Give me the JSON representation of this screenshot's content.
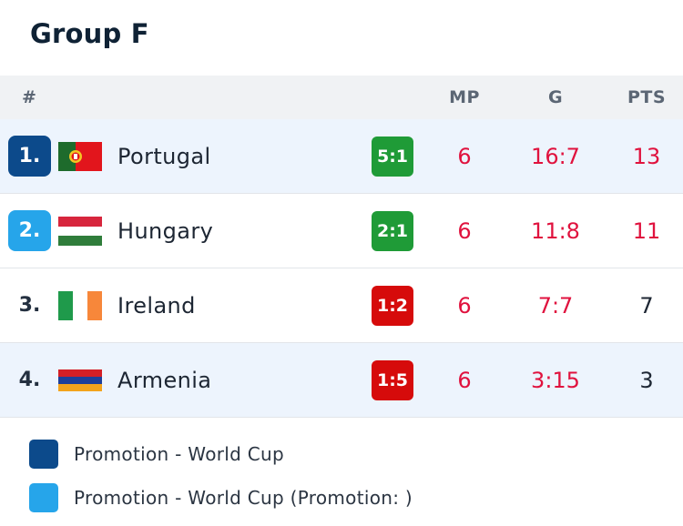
{
  "group_title": "Group F",
  "header": {
    "rank": "#",
    "mp": "MP",
    "g": "G",
    "pts": "PTS"
  },
  "rows": [
    {
      "rank": "1.",
      "flag": "portugal-flag-icon",
      "team": "Portugal",
      "form": "5:1",
      "form_result": "win",
      "mp": "6",
      "g": "16:7",
      "pts": "13"
    },
    {
      "rank": "2.",
      "flag": "hungary-flag-icon",
      "team": "Hungary",
      "form": "2:1",
      "form_result": "win",
      "mp": "6",
      "g": "11:8",
      "pts": "11"
    },
    {
      "rank": "3.",
      "flag": "ireland-flag-icon",
      "team": "Ireland",
      "form": "1:2",
      "form_result": "loss",
      "mp": "6",
      "g": "7:7",
      "pts": "7"
    },
    {
      "rank": "4.",
      "flag": "armenia-flag-icon",
      "team": "Armenia",
      "form": "1:5",
      "form_result": "loss",
      "mp": "6",
      "g": "3:15",
      "pts": "3"
    }
  ],
  "legend": [
    {
      "label": "Promotion - World Cup",
      "color": "#0c4a8b"
    },
    {
      "label": "Promotion - World Cup (Promotion: )",
      "color": "#26a5ea"
    }
  ],
  "colors": {
    "win": "#1f9b37",
    "loss": "#d60b0b",
    "stat_red": "#e0123e",
    "highlight_row": "#edf4fd"
  }
}
